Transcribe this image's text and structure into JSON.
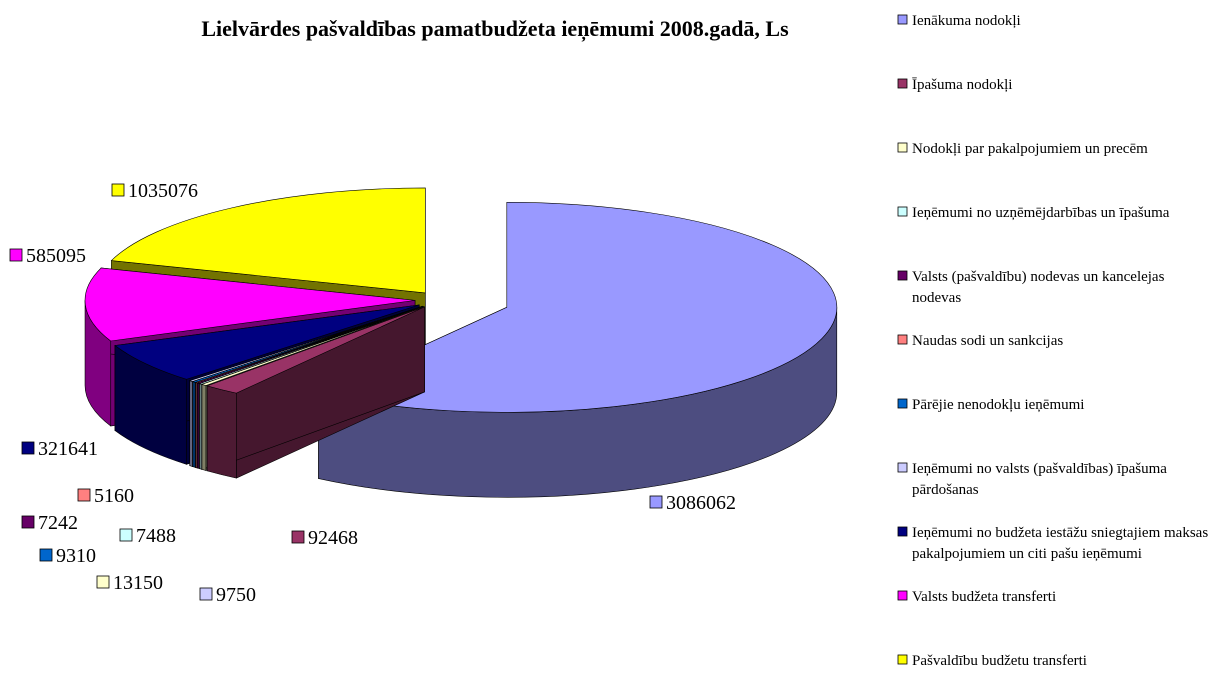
{
  "chart_data": {
    "type": "pie3d",
    "title": "Lielvārdes pašvaldības pamatbudžeta ieņēmumi 2008.gadā, Ls",
    "categories": [
      "Ienākuma nodokļi",
      "Īpašuma nodokļi",
      "Nodokļi par pakalpojumiem un precēm",
      "Ieņēmumi no uzņēmējdarbības un īpašuma",
      "Valsts (pašvaldību) nodevas un kancelejas nodevas",
      "Naudas sodi un sankcijas",
      "Pārējie nenodokļu ieņēmumi",
      "Ieņēmumi no valsts (pašvaldības) īpašuma pārdošanas",
      "Ieņēmumi no budžeta iestāžu sniegtajiem maksas pakalpojumiem un citi pašu ieņēmumi",
      "Valsts budžeta transferti",
      "Pašvaldību budžetu transferti"
    ],
    "values": [
      3086062,
      92468,
      13150,
      7488,
      7242,
      5160,
      9310,
      9750,
      321641,
      585095,
      1035076
    ],
    "colors": [
      "#9999ff",
      "#993366",
      "#ffffcc",
      "#ccffff",
      "#660066",
      "#ff8080",
      "#0066cc",
      "#ccccff",
      "#000080",
      "#ff00ff",
      "#ffff00"
    ],
    "legend": "right"
  }
}
